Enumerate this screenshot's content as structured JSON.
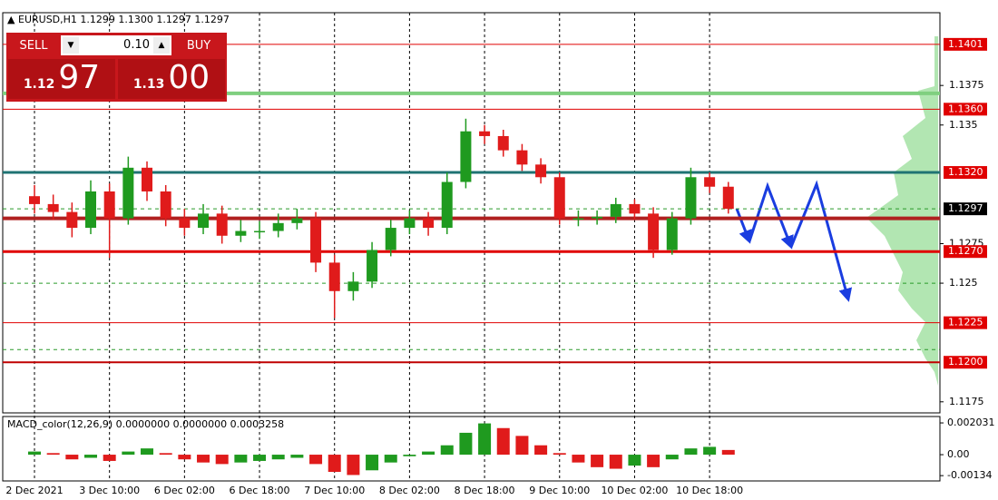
{
  "chart_data": [
    {
      "type": "candlestick",
      "title": "EURUSD,H1 1.1299 1.1300 1.1297 1.1297",
      "categories": [
        "2 Dec 2021",
        null,
        null,
        null,
        "3 Dec 10:00",
        null,
        null,
        null,
        "6 Dec 02:00",
        null,
        null,
        null,
        "6 Dec 18:00",
        null,
        null,
        null,
        "7 Dec 10:00",
        null,
        null,
        null,
        "8 Dec 02:00",
        null,
        null,
        null,
        "8 Dec 18:00",
        null,
        null,
        null,
        "9 Dec 10:00",
        null,
        null,
        null,
        "10 Dec 02:00",
        null,
        null,
        null,
        "10 Dec 18:00",
        null
      ],
      "open": [
        1.1305,
        1.13,
        1.1295,
        1.1285,
        1.1308,
        1.1291,
        1.1323,
        1.1308,
        1.1291,
        1.1285,
        1.1294,
        1.128,
        1.1283,
        1.1283,
        1.1288,
        1.1291,
        1.1263,
        1.1245,
        1.1251,
        1.1271,
        1.1285,
        1.1291,
        1.1285,
        1.1314,
        1.1346,
        1.1343,
        1.1334,
        1.1325,
        1.1317,
        1.1291,
        1.1291,
        1.1292,
        1.13,
        1.1294,
        1.1271,
        1.1291,
        1.1317,
        1.1311
      ],
      "high": [
        1.1312,
        1.1306,
        1.1301,
        1.1315,
        1.1313,
        1.133,
        1.1327,
        1.1312,
        1.1297,
        1.13,
        1.1299,
        1.129,
        1.1289,
        1.1294,
        1.1297,
        1.1295,
        1.1268,
        1.1257,
        1.1276,
        1.129,
        1.1296,
        1.1295,
        1.132,
        1.1354,
        1.135,
        1.1347,
        1.1338,
        1.1329,
        1.132,
        1.1296,
        1.1296,
        1.1304,
        1.1303,
        1.1298,
        1.1295,
        1.1323,
        1.132,
        1.1314
      ],
      "low": [
        1.1294,
        1.129,
        1.1279,
        1.1281,
        1.1266,
        1.1287,
        1.1302,
        1.1286,
        1.128,
        1.1281,
        1.1275,
        1.1276,
        1.1278,
        1.1279,
        1.1284,
        1.1257,
        1.1228,
        1.1239,
        1.1247,
        1.1267,
        1.1281,
        1.128,
        1.1281,
        1.131,
        1.1338,
        1.133,
        1.1321,
        1.1313,
        1.1287,
        1.1286,
        1.1287,
        1.1288,
        1.129,
        1.1266,
        1.1268,
        1.1287,
        1.1307,
        1.1294
      ],
      "close": [
        1.13,
        1.1295,
        1.1285,
        1.1308,
        1.1291,
        1.1323,
        1.1308,
        1.1291,
        1.1285,
        1.1294,
        1.128,
        1.1283,
        1.1283,
        1.1288,
        1.1291,
        1.1263,
        1.1245,
        1.1251,
        1.1271,
        1.1285,
        1.1291,
        1.1285,
        1.1314,
        1.1346,
        1.1343,
        1.1334,
        1.1325,
        1.1317,
        1.1291,
        1.1291,
        1.1292,
        1.13,
        1.1294,
        1.1271,
        1.1291,
        1.1317,
        1.1311,
        1.1297
      ],
      "up_color": "#1f9a1f",
      "down_color": "#e01b1b",
      "ylim": [
        1.1168,
        1.1421
      ],
      "yticks": [
        1.1375,
        1.135,
        1.1275,
        1.125,
        1.1175
      ],
      "levels": [
        {
          "value": 1.1401,
          "color": "#e00000",
          "width": 1,
          "label": "1.1401",
          "tag_color": "#e00000"
        },
        {
          "value": 1.137,
          "color": "#7fcf7f",
          "width": 4
        },
        {
          "value": 1.136,
          "color": "#e00000",
          "width": 1,
          "label": "1.1360",
          "tag_color": "#e00000"
        },
        {
          "value": 1.132,
          "color": "#1f7373",
          "width": 3,
          "label": "1.1320",
          "tag_color": "#e00000"
        },
        {
          "value": 1.1291,
          "color": "#b02020",
          "width": 4
        },
        {
          "value": 1.1297,
          "color": "#2a9a2a",
          "width": 1,
          "dashed": true,
          "label": "1.1297",
          "tag_color": "#000000"
        },
        {
          "value": 1.127,
          "color": "#e00000",
          "width": 3,
          "label": "1.1270",
          "tag_color": "#e00000"
        },
        {
          "value": 1.125,
          "color": "#2a9a2a",
          "width": 1,
          "dashed": true
        },
        {
          "value": 1.1225,
          "color": "#e00000",
          "width": 1,
          "label": "1.1225",
          "tag_color": "#e00000"
        },
        {
          "value": 1.1208,
          "color": "#2a9a2a",
          "width": 1,
          "dashed": true
        },
        {
          "value": 1.12,
          "color": "#c00000",
          "width": 2,
          "label": "1.1200",
          "tag_color": "#e00000"
        }
      ],
      "grid": true
    },
    {
      "type": "bar",
      "title": "MACD_color(12,26,9) 0.0000000 0.0000000 0.0003258",
      "values": [
        0.0002,
        0.0001,
        -0.0003,
        -0.0002,
        -0.0004,
        0.0002,
        0.0004,
        0.0001,
        -0.0003,
        -0.0005,
        -0.0006,
        -0.0005,
        -0.0004,
        -0.0003,
        -0.0002,
        -0.0006,
        -0.0011,
        -0.0013,
        -0.001,
        -0.0005,
        -0.0001,
        0.0002,
        0.0006,
        0.0014,
        0.002,
        0.0017,
        0.0012,
        0.0006,
        0.0001,
        -0.0005,
        -0.0008,
        -0.0009,
        -0.0007,
        -0.0008,
        -0.0003,
        0.0004,
        0.0005,
        0.0003
      ],
      "rising_color": "#1f9a1f",
      "falling_color": "#e01b1b",
      "ylim": [
        -0.00168,
        0.00244
      ],
      "yticks": [
        0.002031,
        {
          "value": 0,
          "label": "0.00"
        },
        -0.00134
      ]
    }
  ],
  "trade_panel": {
    "sell": "SELL",
    "buy": "BUY",
    "lot": "0.10",
    "sell_price_small": "1.12",
    "sell_price_big": "97",
    "buy_price_small": "1.13",
    "buy_price_big": "00"
  }
}
